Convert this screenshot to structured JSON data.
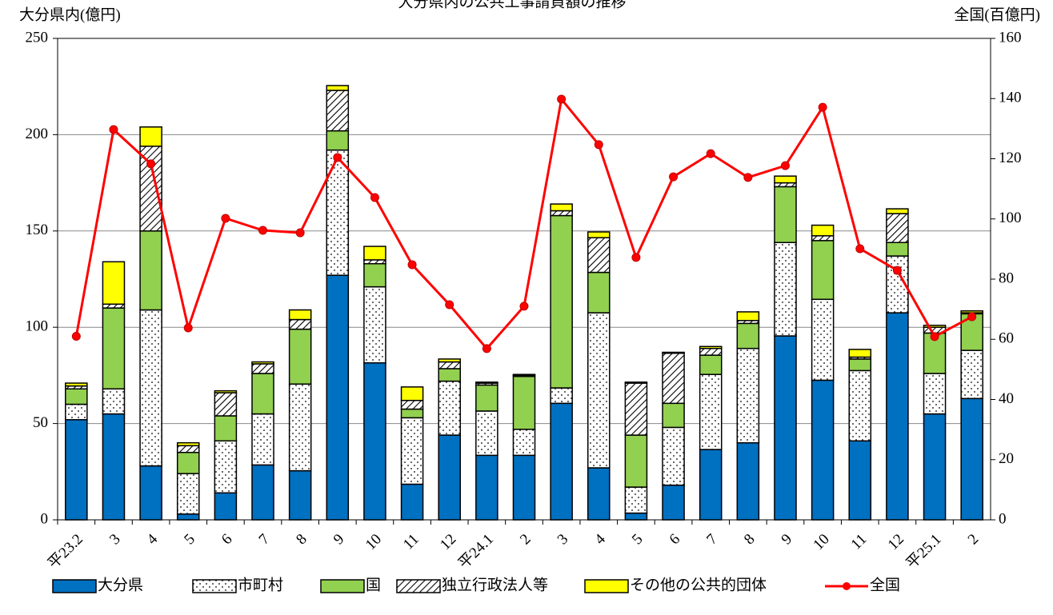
{
  "chart_data": {
    "type": "bar",
    "stacked": true,
    "title": "大分県内の公共工事請負額の推移",
    "y_label": "大分県内(億円)",
    "y2_label": "全国(百億円)",
    "categories": [
      "平23.2",
      "3",
      "4",
      "5",
      "6",
      "7",
      "8",
      "9",
      "10",
      "11",
      "12",
      "平24.1",
      "2",
      "3",
      "4",
      "5",
      "6",
      "7",
      "8",
      "9",
      "10",
      "11",
      "12",
      "平25.1",
      "2"
    ],
    "series": [
      {
        "name": "大分県",
        "color": "#0070c0",
        "values": [
          52,
          55,
          28,
          3,
          14,
          28.5,
          25.5,
          127,
          81.5,
          18.5,
          44,
          33.5,
          33.5,
          60.5,
          27,
          3.5,
          18,
          36.5,
          40,
          95.5,
          72.5,
          41,
          107.5,
          55,
          63
        ]
      },
      {
        "name": "市町村",
        "color": "#ffffff",
        "pattern": "dots",
        "values": [
          8,
          13,
          81,
          21,
          27,
          26.5,
          45,
          65,
          39.5,
          34.5,
          28,
          23,
          13.5,
          8,
          80.5,
          13.5,
          30,
          39,
          49,
          48.5,
          42,
          36.5,
          29.5,
          21,
          25
        ]
      },
      {
        "name": "国",
        "color": "#92d050",
        "values": [
          8,
          42,
          41,
          11,
          13,
          21,
          28.5,
          10,
          12,
          4.5,
          6.5,
          13.5,
          27.5,
          89.5,
          21,
          27,
          12.5,
          10,
          13,
          29,
          30.5,
          6,
          7,
          21,
          19
        ]
      },
      {
        "name": "独立行政法人等",
        "color": "#ffffff",
        "pattern": "hatch",
        "values": [
          1.5,
          2,
          44,
          3.5,
          12,
          5,
          5,
          21,
          2,
          4.5,
          3.5,
          1,
          0.5,
          2.5,
          18,
          27,
          26,
          3.5,
          1.5,
          2,
          2.5,
          1,
          15,
          3,
          0.5
        ]
      },
      {
        "name": "その他の公共的団体",
        "color": "#ffff00",
        "values": [
          1.5,
          22,
          10,
          1.5,
          1,
          1,
          5,
          2.5,
          7,
          7,
          1.5,
          0.5,
          0.5,
          3.5,
          3,
          0.5,
          0.5,
          1,
          4.5,
          3.5,
          5.5,
          4,
          2.5,
          1,
          1
        ]
      },
      {
        "name": "全国",
        "type": "line",
        "axis": "y2",
        "color": "#ff0000",
        "values": [
          61,
          129.7,
          118.3,
          63.8,
          100.2,
          96.2,
          95.4,
          120.4,
          107.1,
          84.8,
          71.5,
          56.9,
          71,
          139.8,
          124.7,
          87.2,
          114,
          121.7,
          113.8,
          117.7,
          137.1,
          90.1,
          82.9,
          60.9,
          67.5
        ]
      }
    ],
    "ylim": [
      0,
      250
    ],
    "yticks": [
      0,
      50,
      100,
      150,
      200,
      250
    ],
    "y2lim": [
      0,
      160
    ],
    "y2ticks": [
      0,
      20,
      40,
      60,
      80,
      100,
      120,
      140,
      160
    ],
    "grid": true,
    "legend": "bottom"
  }
}
